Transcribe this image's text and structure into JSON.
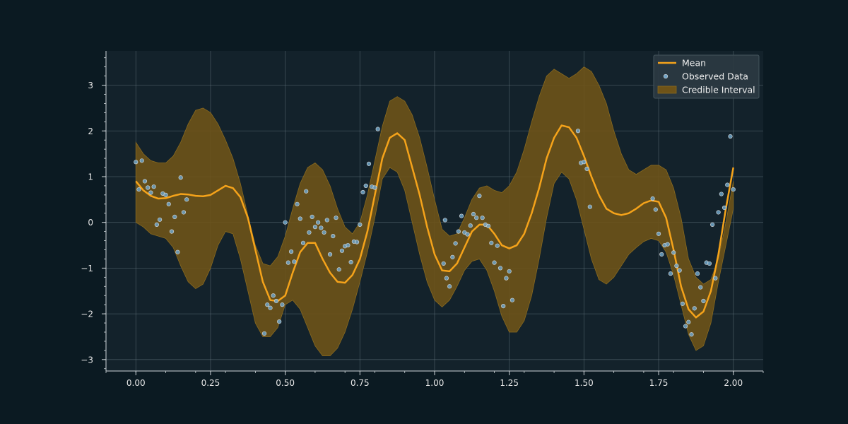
{
  "chart_data": {
    "type": "line",
    "title": "",
    "xlabel": "",
    "ylabel": "",
    "xlim": [
      -0.1,
      2.1
    ],
    "ylim": [
      -3.25,
      3.75
    ],
    "xticks": [
      0.0,
      0.25,
      0.5,
      0.75,
      1.0,
      1.25,
      1.5,
      1.75,
      2.0
    ],
    "xtick_labels": [
      "0.00",
      "0.25",
      "0.50",
      "0.75",
      "1.00",
      "1.25",
      "1.50",
      "1.75",
      "2.00"
    ],
    "yticks": [
      -3,
      -2,
      -1,
      0,
      1,
      2,
      3
    ],
    "ytick_labels": [
      "−3",
      "−2",
      "−1",
      "0",
      "1",
      "2",
      "3"
    ],
    "grid": true,
    "legend": {
      "position": "top-right",
      "entries": [
        "Mean",
        "Observed Data",
        "Credible Interval"
      ]
    },
    "colors": {
      "background": "#0b1a22",
      "axes_bg": "#13222b",
      "mean": "#f5a31a",
      "band": "#6e5318",
      "band_edge": "#8a6a1f",
      "points_fill": "#6fa4c8",
      "points_edge": "#dddddd",
      "grid": "#6a7a84"
    },
    "series": [
      {
        "name": "Mean",
        "x": [
          0.0,
          0.025,
          0.05,
          0.075,
          0.1,
          0.125,
          0.15,
          0.175,
          0.2,
          0.225,
          0.25,
          0.275,
          0.3,
          0.325,
          0.35,
          0.375,
          0.4,
          0.425,
          0.45,
          0.475,
          0.5,
          0.525,
          0.55,
          0.575,
          0.6,
          0.625,
          0.65,
          0.675,
          0.7,
          0.725,
          0.75,
          0.775,
          0.8,
          0.825,
          0.85,
          0.875,
          0.9,
          0.925,
          0.95,
          0.975,
          1.0,
          1.025,
          1.05,
          1.075,
          1.1,
          1.125,
          1.15,
          1.175,
          1.2,
          1.225,
          1.25,
          1.275,
          1.3,
          1.325,
          1.35,
          1.375,
          1.4,
          1.425,
          1.45,
          1.475,
          1.5,
          1.525,
          1.55,
          1.575,
          1.6,
          1.625,
          1.65,
          1.675,
          1.7,
          1.725,
          1.75,
          1.775,
          1.8,
          1.825,
          1.85,
          1.875,
          1.9,
          1.925,
          1.95,
          1.975,
          2.0
        ],
        "y": [
          0.9,
          0.7,
          0.58,
          0.52,
          0.53,
          0.58,
          0.62,
          0.61,
          0.58,
          0.57,
          0.6,
          0.7,
          0.8,
          0.75,
          0.55,
          0.1,
          -0.6,
          -1.3,
          -1.7,
          -1.72,
          -1.6,
          -1.1,
          -0.65,
          -0.45,
          -0.45,
          -0.8,
          -1.1,
          -1.3,
          -1.32,
          -1.15,
          -0.8,
          -0.2,
          0.6,
          1.4,
          1.85,
          1.95,
          1.8,
          1.2,
          0.6,
          -0.1,
          -0.7,
          -1.05,
          -1.07,
          -0.9,
          -0.55,
          -0.2,
          -0.05,
          -0.05,
          -0.25,
          -0.5,
          -0.57,
          -0.5,
          -0.25,
          0.2,
          0.75,
          1.4,
          1.85,
          2.12,
          2.08,
          1.85,
          1.45,
          1.0,
          0.6,
          0.3,
          0.2,
          0.16,
          0.2,
          0.3,
          0.42,
          0.48,
          0.45,
          0.1,
          -0.6,
          -1.4,
          -1.9,
          -2.08,
          -1.95,
          -1.5,
          -0.7,
          0.3,
          1.2
        ]
      },
      {
        "name": "Credible Interval",
        "x": [
          0.0,
          0.025,
          0.05,
          0.075,
          0.1,
          0.125,
          0.15,
          0.175,
          0.2,
          0.225,
          0.25,
          0.275,
          0.3,
          0.325,
          0.35,
          0.375,
          0.4,
          0.425,
          0.45,
          0.475,
          0.5,
          0.525,
          0.55,
          0.575,
          0.6,
          0.625,
          0.65,
          0.675,
          0.7,
          0.725,
          0.75,
          0.775,
          0.8,
          0.825,
          0.85,
          0.875,
          0.9,
          0.925,
          0.95,
          0.975,
          1.0,
          1.025,
          1.05,
          1.075,
          1.1,
          1.125,
          1.15,
          1.175,
          1.2,
          1.225,
          1.25,
          1.275,
          1.3,
          1.325,
          1.35,
          1.375,
          1.4,
          1.425,
          1.45,
          1.475,
          1.5,
          1.525,
          1.55,
          1.575,
          1.6,
          1.625,
          1.65,
          1.675,
          1.7,
          1.725,
          1.75,
          1.775,
          1.8,
          1.825,
          1.85,
          1.875,
          1.9,
          1.925,
          1.95,
          1.975,
          2.0
        ],
        "lower": [
          0.0,
          -0.1,
          -0.25,
          -0.3,
          -0.35,
          -0.55,
          -0.95,
          -1.3,
          -1.45,
          -1.35,
          -1.0,
          -0.5,
          -0.2,
          -0.25,
          -0.8,
          -1.5,
          -2.2,
          -2.5,
          -2.5,
          -2.3,
          -1.8,
          -1.7,
          -1.9,
          -2.3,
          -2.7,
          -2.92,
          -2.92,
          -2.75,
          -2.4,
          -1.9,
          -1.3,
          -0.65,
          0.1,
          0.95,
          1.2,
          1.1,
          0.7,
          0.0,
          -0.7,
          -1.3,
          -1.7,
          -1.85,
          -1.7,
          -1.4,
          -1.05,
          -0.85,
          -0.8,
          -1.05,
          -1.5,
          -2.05,
          -2.4,
          -2.4,
          -2.15,
          -1.6,
          -0.8,
          0.1,
          0.85,
          1.1,
          0.95,
          0.5,
          -0.15,
          -0.8,
          -1.25,
          -1.35,
          -1.2,
          -0.95,
          -0.7,
          -0.55,
          -0.42,
          -0.35,
          -0.4,
          -0.65,
          -1.15,
          -1.8,
          -2.45,
          -2.8,
          -2.7,
          -2.2,
          -1.3,
          -0.5,
          0.3
        ],
        "upper": [
          1.75,
          1.5,
          1.35,
          1.3,
          1.3,
          1.45,
          1.75,
          2.15,
          2.45,
          2.5,
          2.4,
          2.15,
          1.8,
          1.4,
          0.85,
          0.15,
          -0.5,
          -0.9,
          -0.95,
          -0.75,
          -0.3,
          0.3,
          0.85,
          1.2,
          1.3,
          1.15,
          0.8,
          0.3,
          -0.1,
          -0.25,
          0.0,
          0.6,
          1.35,
          2.1,
          2.65,
          2.75,
          2.65,
          2.35,
          1.85,
          1.2,
          0.5,
          -0.15,
          -0.3,
          -0.25,
          0.1,
          0.5,
          0.75,
          0.8,
          0.7,
          0.65,
          0.8,
          1.1,
          1.6,
          2.2,
          2.75,
          3.2,
          3.35,
          3.25,
          3.15,
          3.25,
          3.4,
          3.3,
          3.0,
          2.6,
          2.0,
          1.5,
          1.15,
          1.05,
          1.15,
          1.25,
          1.25,
          1.15,
          0.75,
          0.1,
          -0.8,
          -1.2,
          -1.35,
          -1.25,
          -0.8,
          0.0,
          0.9
        ]
      },
      {
        "name": "Observed Data",
        "type": "scatter",
        "points": [
          [
            0.0,
            1.32
          ],
          [
            0.01,
            0.72
          ],
          [
            0.02,
            1.35
          ],
          [
            0.03,
            0.9
          ],
          [
            0.04,
            0.76
          ],
          [
            0.05,
            0.65
          ],
          [
            0.06,
            0.78
          ],
          [
            0.07,
            -0.05
          ],
          [
            0.08,
            0.06
          ],
          [
            0.09,
            0.63
          ],
          [
            0.1,
            0.6
          ],
          [
            0.11,
            0.4
          ],
          [
            0.12,
            -0.2
          ],
          [
            0.13,
            0.12
          ],
          [
            0.14,
            -0.65
          ],
          [
            0.15,
            0.98
          ],
          [
            0.16,
            0.22
          ],
          [
            0.17,
            0.5
          ],
          [
            0.43,
            -2.43
          ],
          [
            0.44,
            -1.8
          ],
          [
            0.45,
            -1.87
          ],
          [
            0.46,
            -1.6
          ],
          [
            0.47,
            -1.72
          ],
          [
            0.48,
            -2.17
          ],
          [
            0.49,
            -1.8
          ],
          [
            0.5,
            0.0
          ],
          [
            0.51,
            -0.88
          ],
          [
            0.52,
            -0.64
          ],
          [
            0.53,
            -0.86
          ],
          [
            0.54,
            0.4
          ],
          [
            0.55,
            0.08
          ],
          [
            0.56,
            -0.45
          ],
          [
            0.57,
            0.68
          ],
          [
            0.58,
            -0.22
          ],
          [
            0.59,
            0.12
          ],
          [
            0.6,
            -0.1
          ],
          [
            0.61,
            0.0
          ],
          [
            0.62,
            -0.12
          ],
          [
            0.63,
            -0.22
          ],
          [
            0.64,
            0.05
          ],
          [
            0.65,
            -0.7
          ],
          [
            0.66,
            -0.3
          ],
          [
            0.67,
            0.1
          ],
          [
            0.68,
            -1.03
          ],
          [
            0.69,
            -0.62
          ],
          [
            0.7,
            -0.52
          ],
          [
            0.71,
            -0.5
          ],
          [
            0.72,
            -0.87
          ],
          [
            0.73,
            -0.42
          ],
          [
            0.74,
            -0.43
          ],
          [
            0.75,
            -0.05
          ],
          [
            0.76,
            0.66
          ],
          [
            0.77,
            0.8
          ],
          [
            0.78,
            1.28
          ],
          [
            0.79,
            0.78
          ],
          [
            0.8,
            0.76
          ],
          [
            0.81,
            2.04
          ],
          [
            1.03,
            -0.9
          ],
          [
            1.035,
            0.05
          ],
          [
            1.04,
            -1.22
          ],
          [
            1.05,
            -1.4
          ],
          [
            1.06,
            -0.76
          ],
          [
            1.07,
            -0.46
          ],
          [
            1.08,
            -0.2
          ],
          [
            1.09,
            0.14
          ],
          [
            1.1,
            -0.22
          ],
          [
            1.11,
            -0.26
          ],
          [
            1.12,
            -0.07
          ],
          [
            1.13,
            0.18
          ],
          [
            1.14,
            0.1
          ],
          [
            1.15,
            0.58
          ],
          [
            1.16,
            0.1
          ],
          [
            1.17,
            -0.05
          ],
          [
            1.18,
            -0.08
          ],
          [
            1.19,
            -0.45
          ],
          [
            1.2,
            -0.88
          ],
          [
            1.21,
            -0.51
          ],
          [
            1.22,
            -1.0
          ],
          [
            1.23,
            -1.83
          ],
          [
            1.24,
            -1.22
          ],
          [
            1.25,
            -1.07
          ],
          [
            1.26,
            -1.7
          ],
          [
            1.48,
            2.0
          ],
          [
            1.49,
            1.3
          ],
          [
            1.5,
            1.32
          ],
          [
            1.51,
            1.17
          ],
          [
            1.52,
            0.34
          ],
          [
            1.73,
            0.52
          ],
          [
            1.74,
            0.28
          ],
          [
            1.75,
            -0.25
          ],
          [
            1.76,
            -0.7
          ],
          [
            1.77,
            -0.5
          ],
          [
            1.78,
            -0.48
          ],
          [
            1.79,
            -1.12
          ],
          [
            1.8,
            -0.66
          ],
          [
            1.81,
            -0.95
          ],
          [
            1.82,
            -1.05
          ],
          [
            1.83,
            -1.78
          ],
          [
            1.84,
            -2.27
          ],
          [
            1.85,
            -2.18
          ],
          [
            1.86,
            -2.45
          ],
          [
            1.87,
            -1.88
          ],
          [
            1.88,
            -1.12
          ],
          [
            1.89,
            -1.42
          ],
          [
            1.9,
            -1.72
          ],
          [
            1.91,
            -0.88
          ],
          [
            1.92,
            -0.9
          ],
          [
            1.93,
            -0.05
          ],
          [
            1.94,
            -1.22
          ],
          [
            1.95,
            0.22
          ],
          [
            1.96,
            0.62
          ],
          [
            1.97,
            0.32
          ],
          [
            1.98,
            0.82
          ],
          [
            1.99,
            1.88
          ],
          [
            2.0,
            0.72
          ]
        ]
      }
    ]
  }
}
